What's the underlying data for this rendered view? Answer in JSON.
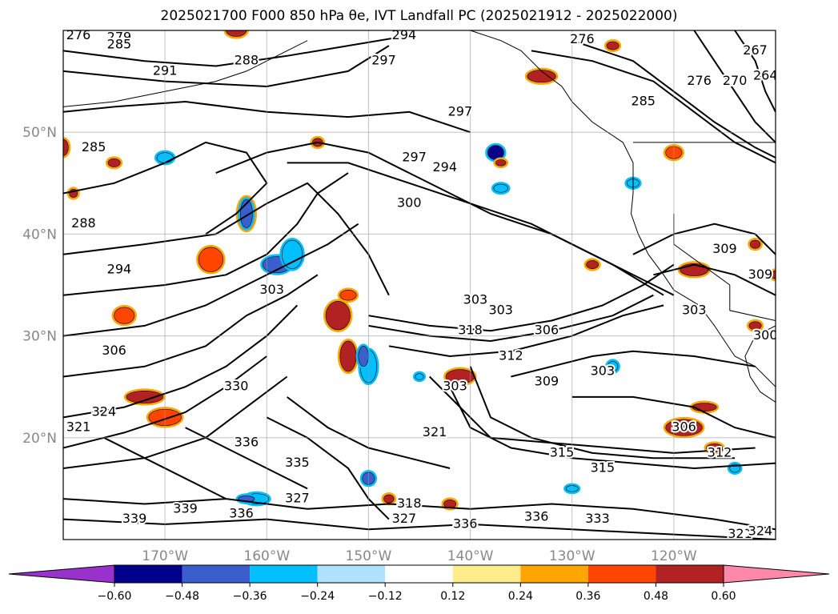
{
  "title": "2025021700 F000 850 hPa θe, IVT Landfall PC (2025021912 - 2025022000)",
  "map": {
    "lon_range": [
      -180,
      -110
    ],
    "lat_range": [
      10,
      60
    ],
    "lat_ticks": [
      {
        "value": 50,
        "label": "50°N"
      },
      {
        "value": 40,
        "label": "40°N"
      },
      {
        "value": 30,
        "label": "30°N"
      },
      {
        "value": 20,
        "label": "20°N"
      }
    ],
    "lon_ticks": [
      {
        "value": -170,
        "label": "170°W"
      },
      {
        "value": -160,
        "label": "160°W"
      },
      {
        "value": -150,
        "label": "150°W"
      },
      {
        "value": -140,
        "label": "140°W"
      },
      {
        "value": -130,
        "label": "130°W"
      },
      {
        "value": -120,
        "label": "120°W"
      }
    ],
    "grid": true,
    "contour_variable": "850 hPa theta-e (K)",
    "contour_labels": [
      {
        "text": "276",
        "lon": -178.5,
        "lat": 59.5
      },
      {
        "text": "279",
        "lon": -174.5,
        "lat": 59.3
      },
      {
        "text": "285",
        "lon": -174.5,
        "lat": 58.6
      },
      {
        "text": "294",
        "lon": -146.5,
        "lat": 59.5
      },
      {
        "text": "291",
        "lon": -170.0,
        "lat": 56.0
      },
      {
        "text": "288",
        "lon": -162.0,
        "lat": 57.0
      },
      {
        "text": "297",
        "lon": -148.5,
        "lat": 57.0
      },
      {
        "text": "297",
        "lon": -141.0,
        "lat": 52.0
      },
      {
        "text": "276",
        "lon": -129.0,
        "lat": 59.1
      },
      {
        "text": "276",
        "lon": -117.5,
        "lat": 55.0
      },
      {
        "text": "270",
        "lon": -114.0,
        "lat": 55.0
      },
      {
        "text": "267",
        "lon": -112.0,
        "lat": 58.0
      },
      {
        "text": "264",
        "lon": -111.0,
        "lat": 55.5
      },
      {
        "text": "285",
        "lon": -123.0,
        "lat": 53.0
      },
      {
        "text": "285",
        "lon": -177.0,
        "lat": 48.5
      },
      {
        "text": "297",
        "lon": -145.5,
        "lat": 47.5
      },
      {
        "text": "294",
        "lon": -142.5,
        "lat": 46.5
      },
      {
        "text": "300",
        "lon": -146.0,
        "lat": 43.0
      },
      {
        "text": "288",
        "lon": -178.0,
        "lat": 41.0
      },
      {
        "text": "294",
        "lon": -174.5,
        "lat": 36.5
      },
      {
        "text": "309",
        "lon": -115.0,
        "lat": 38.5
      },
      {
        "text": "309",
        "lon": -111.5,
        "lat": 36.0
      },
      {
        "text": "303",
        "lon": -139.5,
        "lat": 33.5
      },
      {
        "text": "303",
        "lon": -137.0,
        "lat": 32.5
      },
      {
        "text": "303",
        "lon": -118.0,
        "lat": 32.5
      },
      {
        "text": "318",
        "lon": -140.0,
        "lat": 30.5
      },
      {
        "text": "306",
        "lon": -132.5,
        "lat": 30.5
      },
      {
        "text": "306",
        "lon": -175.0,
        "lat": 28.5
      },
      {
        "text": "312",
        "lon": -136.0,
        "lat": 28.0
      },
      {
        "text": "300",
        "lon": -111.0,
        "lat": 30.0
      },
      {
        "text": "303",
        "lon": -127.0,
        "lat": 26.5
      },
      {
        "text": "309",
        "lon": -132.5,
        "lat": 25.5
      },
      {
        "text": "303",
        "lon": -141.5,
        "lat": 25.0
      },
      {
        "text": "303",
        "lon": -159.5,
        "lat": 34.5
      },
      {
        "text": "330",
        "lon": -163.0,
        "lat": 25.0
      },
      {
        "text": "324",
        "lon": -176.0,
        "lat": 22.5
      },
      {
        "text": "321",
        "lon": -178.5,
        "lat": 21.0
      },
      {
        "text": "321",
        "lon": -143.5,
        "lat": 20.5
      },
      {
        "text": "306",
        "lon": -119.0,
        "lat": 21.0
      },
      {
        "text": "312",
        "lon": -115.5,
        "lat": 18.5
      },
      {
        "text": "315",
        "lon": -131.0,
        "lat": 18.5
      },
      {
        "text": "315",
        "lon": -127.0,
        "lat": 17.0
      },
      {
        "text": "336",
        "lon": -162.0,
        "lat": 19.5
      },
      {
        "text": "335",
        "lon": -157.0,
        "lat": 17.5
      },
      {
        "text": "339",
        "lon": -173.0,
        "lat": 12.0
      },
      {
        "text": "339",
        "lon": -168.0,
        "lat": 13.0
      },
      {
        "text": "336",
        "lon": -162.5,
        "lat": 12.5
      },
      {
        "text": "327",
        "lon": -146.5,
        "lat": 12.0
      },
      {
        "text": "336",
        "lon": -140.5,
        "lat": 11.5
      },
      {
        "text": "336",
        "lon": -133.5,
        "lat": 12.2
      },
      {
        "text": "333",
        "lon": -127.5,
        "lat": 12.0
      },
      {
        "text": "321",
        "lon": -113.5,
        "lat": 10.5
      },
      {
        "text": "324",
        "lon": -111.5,
        "lat": 10.8
      },
      {
        "text": "318",
        "lon": -146.0,
        "lat": 13.5
      },
      {
        "text": "327",
        "lon": -157.0,
        "lat": 14.0
      }
    ]
  },
  "colorbar": {
    "variable": "IVT Landfall PC",
    "boundaries": [
      -0.6,
      -0.48,
      -0.36,
      -0.24,
      -0.12,
      0.12,
      0.24,
      0.36,
      0.48,
      0.6
    ],
    "tick_labels": [
      "−0.60",
      "−0.48",
      "−0.36",
      "−0.24",
      "−0.12",
      "0.12",
      "0.24",
      "0.36",
      "0.48",
      "0.60"
    ],
    "colors": [
      "#9932cc",
      "#00008b",
      "#3a5fcd",
      "#00bfff",
      "#b0e2ff",
      "#ffffff",
      "#ffec8b",
      "#ffa500",
      "#ff4500",
      "#b22222",
      "#ff88aa"
    ],
    "extend": "both"
  }
}
